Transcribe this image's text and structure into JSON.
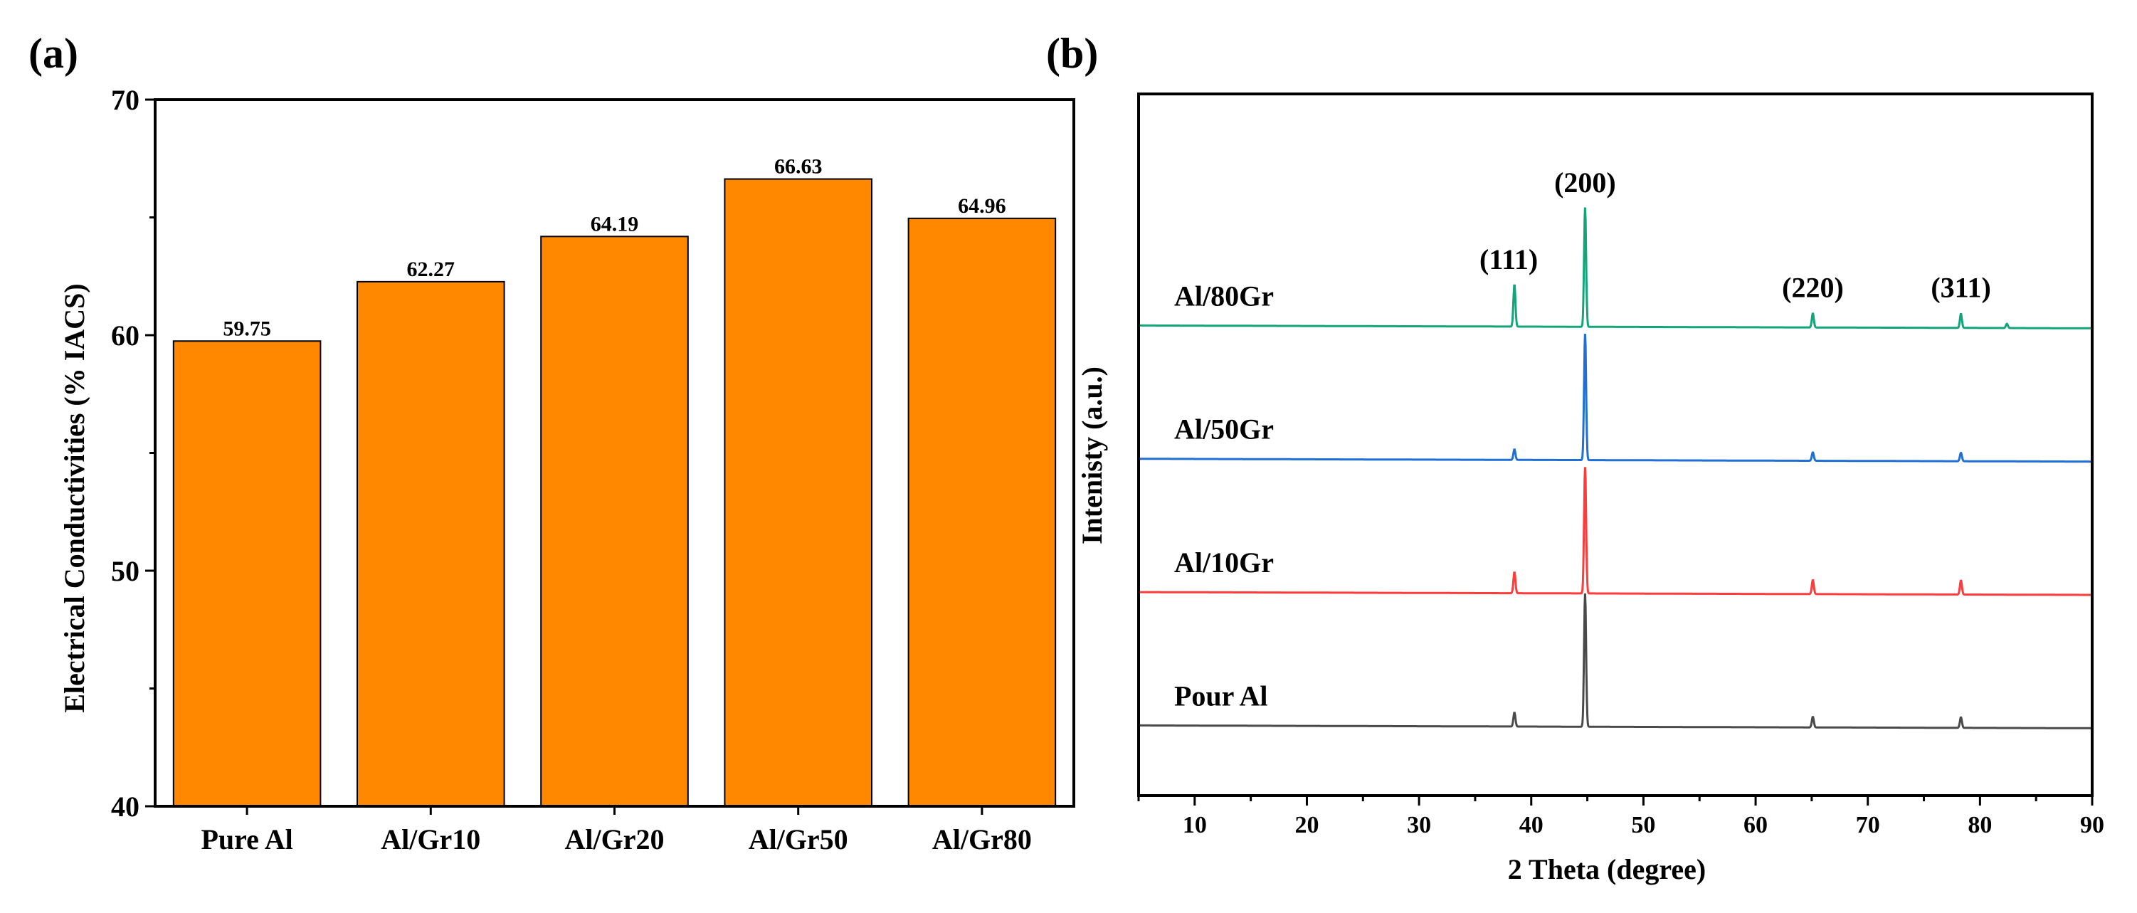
{
  "chart_data": [
    {
      "panel_label": "(a)",
      "type": "bar",
      "categories": [
        "Pure Al",
        "Al/Gr10",
        "Al/Gr20",
        "Al/Gr50",
        "Al/Gr80"
      ],
      "values": [
        59.75,
        62.27,
        64.19,
        66.63,
        64.96
      ],
      "value_labels": [
        "59.75",
        "62.27",
        "64.19",
        "66.63",
        "64.96"
      ],
      "bar_color": "#ff8800",
      "title": "",
      "xlabel": "",
      "ylabel": "Electrical Conductivities (% IACS)",
      "ylim": [
        40,
        70
      ],
      "yticks": [
        40,
        50,
        60,
        70
      ],
      "ytick_labels": [
        "40",
        "50",
        "60",
        "70"
      ],
      "grid": false,
      "legend": "none"
    },
    {
      "panel_label": "(b)",
      "type": "line",
      "title": "",
      "xlabel": "2 Theta (degree)",
      "ylabel": "Intenisty (a.u.)",
      "xlim": [
        5,
        90
      ],
      "xticks": [
        10,
        20,
        30,
        40,
        50,
        60,
        70,
        80,
        90
      ],
      "xtick_labels": [
        "10",
        "20",
        "30",
        "40",
        "50",
        "60",
        "70",
        "80",
        "90"
      ],
      "yticks_shown": false,
      "grid": false,
      "legend": "none",
      "series": [
        {
          "name": "Pour Al",
          "color": "#4a4a4a",
          "baseline": 0.1,
          "peaks": [
            [
              38.5,
              0.02
            ],
            [
              44.8,
              0.19
            ],
            [
              65.1,
              0.015
            ],
            [
              78.3,
              0.015
            ]
          ]
        },
        {
          "name": "Al/10Gr",
          "color": "#ff3b3b",
          "baseline": 0.29,
          "peaks": [
            [
              38.5,
              0.03
            ],
            [
              44.8,
              0.18
            ],
            [
              65.1,
              0.02
            ],
            [
              78.3,
              0.02
            ]
          ]
        },
        {
          "name": "Al/50Gr",
          "color": "#1f6fd6",
          "baseline": 0.48,
          "peaks": [
            [
              38.5,
              0.015
            ],
            [
              44.8,
              0.18
            ],
            [
              65.1,
              0.012
            ],
            [
              78.3,
              0.012
            ]
          ]
        },
        {
          "name": "Al/80Gr",
          "color": "#12a57a",
          "baseline": 0.67,
          "peaks": [
            [
              38.5,
              0.06
            ],
            [
              44.8,
              0.17
            ],
            [
              65.1,
              0.02
            ],
            [
              78.3,
              0.02
            ],
            [
              82.4,
              0.006
            ]
          ]
        }
      ],
      "annotations": [
        {
          "text": "(111)",
          "x": 38.5
        },
        {
          "text": "(200)",
          "x": 44.8
        },
        {
          "text": "(220)",
          "x": 65.1
        },
        {
          "text": "(311)",
          "x": 78.3
        }
      ]
    }
  ]
}
